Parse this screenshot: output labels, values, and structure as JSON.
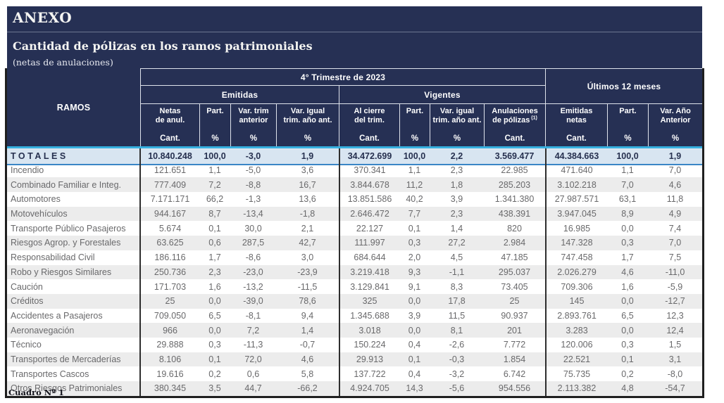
{
  "page": {
    "title": "ANEXO",
    "subtitle": "Cantidad de pólizas en los ramos patrimoniales",
    "subnote": "(netas de anulaciones)",
    "footer": "Cuadro Nº 1"
  },
  "colors": {
    "navy_header": "#263054",
    "cyan_divider": "#36b0e0",
    "totals_row_bg": "#d8e5f1",
    "totals_underline_blue": "#3a86c6",
    "alt_row_gray": "#ececec",
    "body_text_gray": "#69696b"
  },
  "table": {
    "ramos_header": "RAMOS",
    "group_quarter": "4° Trimestre de 2023",
    "group_last12": "Últimos 12 meses",
    "group_emitidas": "Emitidas",
    "group_vigentes": "Vigentes",
    "columns": [
      {
        "line1": "Netas",
        "line2": "de anul.",
        "unit": "Cant."
      },
      {
        "line1": "Part.",
        "line2": "",
        "unit": "%"
      },
      {
        "line1": "Var. trim",
        "line2": "anterior",
        "unit": "%"
      },
      {
        "line1": "Var. Igual",
        "line2": "trim. año ant.",
        "unit": "%"
      },
      {
        "line1": "Al cierre",
        "line2": "del trim.",
        "unit": "Cant."
      },
      {
        "line1": "Part.",
        "line2": "",
        "unit": "%"
      },
      {
        "line1": "Var. igual",
        "line2": "trim. año ant.",
        "unit": "%"
      },
      {
        "line1": "Anulaciones",
        "line2": "de pólizas",
        "sup": "(1)",
        "unit": "Cant."
      },
      {
        "line1": "Emitidas",
        "line2": "netas",
        "unit": "Cant."
      },
      {
        "line1": "Part.",
        "line2": "",
        "unit": "%"
      },
      {
        "line1": "Var. Año",
        "line2": "Anterior",
        "unit": "%"
      }
    ],
    "totals": {
      "label": "TOTALES",
      "values": [
        "10.840.248",
        "100,0",
        "-3,0",
        "1,9",
        "34.472.699",
        "100,0",
        "2,2",
        "3.569.477",
        "44.384.663",
        "100,0",
        "1,9"
      ]
    },
    "rows": [
      {
        "label": "Incendio",
        "values": [
          "121.651",
          "1,1",
          "-5,0",
          "3,6",
          "370.341",
          "1,1",
          "2,3",
          "22.985",
          "471.640",
          "1,1",
          "7,0"
        ]
      },
      {
        "label": "Combinado Familiar e Integ.",
        "values": [
          "777.409",
          "7,2",
          "-8,8",
          "16,7",
          "3.844.678",
          "11,2",
          "1,8",
          "285.203",
          "3.102.218",
          "7,0",
          "4,6"
        ]
      },
      {
        "label": "Automotores",
        "values": [
          "7.171.171",
          "66,2",
          "-1,3",
          "13,6",
          "13.851.586",
          "40,2",
          "3,9",
          "1.341.380",
          "27.987.571",
          "63,1",
          "11,8"
        ]
      },
      {
        "label": "Motovehículos",
        "values": [
          "944.167",
          "8,7",
          "-13,4",
          "-1,8",
          "2.646.472",
          "7,7",
          "2,3",
          "438.391",
          "3.947.045",
          "8,9",
          "4,9"
        ]
      },
      {
        "label": "Transporte Público Pasajeros",
        "values": [
          "5.674",
          "0,1",
          "30,0",
          "2,1",
          "22.127",
          "0,1",
          "1,4",
          "820",
          "16.985",
          "0,0",
          "7,4"
        ]
      },
      {
        "label": "Riesgos Agrop. y Forestales",
        "values": [
          "63.625",
          "0,6",
          "287,5",
          "42,7",
          "111.997",
          "0,3",
          "27,2",
          "2.984",
          "147.328",
          "0,3",
          "7,0"
        ]
      },
      {
        "label": "Responsabilidad Civil",
        "values": [
          "186.116",
          "1,7",
          "-8,6",
          "3,0",
          "684.644",
          "2,0",
          "4,5",
          "47.185",
          "747.458",
          "1,7",
          "7,5"
        ]
      },
      {
        "label": "Robo y Riesgos Similares",
        "values": [
          "250.736",
          "2,3",
          "-23,0",
          "-23,9",
          "3.219.418",
          "9,3",
          "-1,1",
          "295.037",
          "2.026.279",
          "4,6",
          "-11,0"
        ]
      },
      {
        "label": "Caución",
        "values": [
          "171.703",
          "1,6",
          "-13,2",
          "-11,5",
          "3.129.841",
          "9,1",
          "8,3",
          "73.405",
          "709.306",
          "1,6",
          "-5,9"
        ]
      },
      {
        "label": "Créditos",
        "values": [
          "25",
          "0,0",
          "-39,0",
          "78,6",
          "325",
          "0,0",
          "17,8",
          "25",
          "145",
          "0,0",
          "-12,7"
        ]
      },
      {
        "label": "Accidentes a Pasajeros",
        "values": [
          "709.050",
          "6,5",
          "-8,1",
          "9,4",
          "1.345.688",
          "3,9",
          "11,5",
          "90.937",
          "2.893.761",
          "6,5",
          "12,3"
        ]
      },
      {
        "label": "Aeronavegación",
        "values": [
          "966",
          "0,0",
          "7,2",
          "1,4",
          "3.018",
          "0,0",
          "8,1",
          "201",
          "3.283",
          "0,0",
          "12,4"
        ]
      },
      {
        "label": "Técnico",
        "values": [
          "29.888",
          "0,3",
          "-11,3",
          "-0,7",
          "150.224",
          "0,4",
          "-2,6",
          "7.772",
          "120.006",
          "0,3",
          "1,5"
        ]
      },
      {
        "label": "Transportes de Mercaderías",
        "values": [
          "8.106",
          "0,1",
          "72,0",
          "4,6",
          "29.913",
          "0,1",
          "-0,3",
          "1.854",
          "22.521",
          "0,1",
          "3,1"
        ]
      },
      {
        "label": "Transportes Cascos",
        "values": [
          "19.616",
          "0,2",
          "0,6",
          "5,8",
          "137.722",
          "0,4",
          "-3,2",
          "6.742",
          "75.735",
          "0,2",
          "-8,0"
        ]
      },
      {
        "label": "Otros Riesgos Patrimoniales",
        "values": [
          "380.345",
          "3,5",
          "44,7",
          "-66,2",
          "4.924.705",
          "14,3",
          "-5,6",
          "954.556",
          "2.113.382",
          "4,8",
          "-54,7"
        ]
      }
    ]
  }
}
